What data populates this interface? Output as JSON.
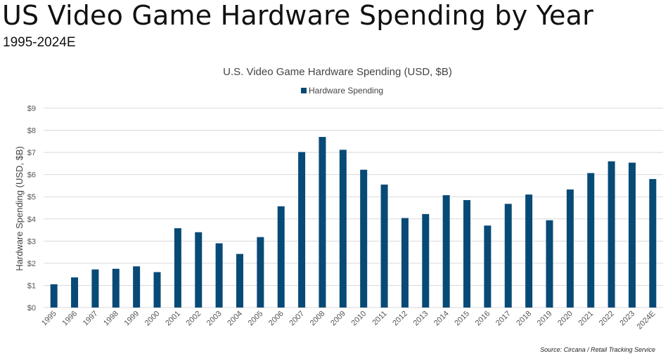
{
  "header": {
    "title": "US Video Game Hardware Spending by Year",
    "subtitle": "1995-2024E"
  },
  "footer": {
    "source": "Source: Circana / Retail Tracking Service"
  },
  "colors": {
    "bar": "#084a76",
    "grid": "#d9d9d9",
    "axis_text": "#555555",
    "title_text": "#444444"
  },
  "chart_data": {
    "type": "bar",
    "title": "U.S. Video Game Hardware Spending (USD, $B)",
    "xlabel": "",
    "ylabel": "Hardware Spending (USD, $B)",
    "legend": {
      "position": "top-center"
    },
    "ylim": [
      0,
      9
    ],
    "y_ticks": [
      0,
      1,
      2,
      3,
      4,
      5,
      6,
      7,
      8,
      9
    ],
    "y_tick_labels": [
      "$0",
      "$1",
      "$2",
      "$3",
      "$4",
      "$5",
      "$6",
      "$7",
      "$8",
      "$9"
    ],
    "grid": true,
    "categories": [
      "1995",
      "1996",
      "1997",
      "1998",
      "1999",
      "2000",
      "2001",
      "2002",
      "2003",
      "2004",
      "2005",
      "2006",
      "2007",
      "2008",
      "2009",
      "2010",
      "2011",
      "2012",
      "2013",
      "2014",
      "2015",
      "2016",
      "2017",
      "2018",
      "2019",
      "2020",
      "2021",
      "2022",
      "2023",
      "2024E"
    ],
    "series": [
      {
        "name": "Hardware Spending",
        "values": [
          1.05,
          1.36,
          1.72,
          1.75,
          1.86,
          1.6,
          3.58,
          3.4,
          2.9,
          2.42,
          3.18,
          4.57,
          7.02,
          7.7,
          7.12,
          6.22,
          5.55,
          4.04,
          4.22,
          5.07,
          4.85,
          3.7,
          4.68,
          5.1,
          3.94,
          5.33,
          6.07,
          6.6,
          6.54,
          5.8
        ]
      }
    ]
  }
}
